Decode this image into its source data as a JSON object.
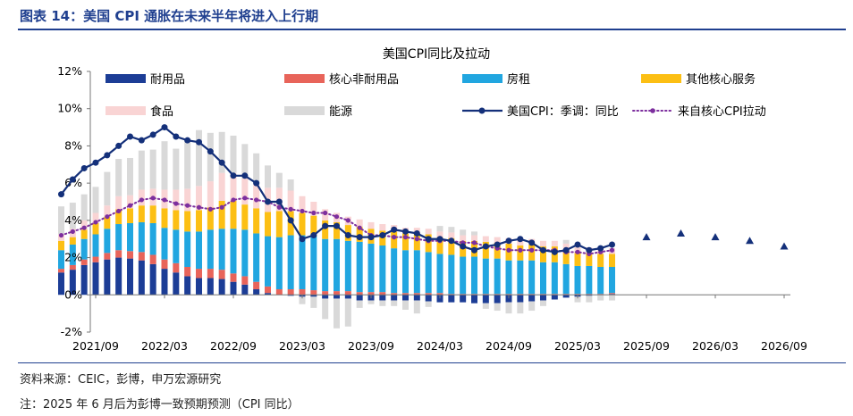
{
  "figure": {
    "title": "图表 14：美国 CPI 通胀在未来半年将进入上行期",
    "source": "资料来源：CEIC，彭博，申万宏源研究",
    "note": "注：2025 年 6 月后为彭博一致预期预测（CPI 同比）"
  },
  "chart_data": {
    "type": "bar",
    "title": "美国CPI同比及拉动",
    "ylim": [
      -2,
      12
    ],
    "yticks": [
      "-2%",
      "0%",
      "2%",
      "4%",
      "6%",
      "8%",
      "10%",
      "12%"
    ],
    "xticks": [
      "2021/09",
      "2022/03",
      "2022/09",
      "2023/03",
      "2023/09",
      "2024/03",
      "2024/09",
      "2025/03",
      "2025/09",
      "2026/03",
      "2026/09"
    ],
    "months": [
      "2021/06",
      "2021/07",
      "2021/08",
      "2021/09",
      "2021/10",
      "2021/11",
      "2021/12",
      "2022/01",
      "2022/02",
      "2022/03",
      "2022/04",
      "2022/05",
      "2022/06",
      "2022/07",
      "2022/08",
      "2022/09",
      "2022/10",
      "2022/11",
      "2022/12",
      "2023/01",
      "2023/02",
      "2023/03",
      "2023/04",
      "2023/05",
      "2023/06",
      "2023/07",
      "2023/08",
      "2023/09",
      "2023/10",
      "2023/11",
      "2023/12",
      "2024/01",
      "2024/02",
      "2024/03",
      "2024/04",
      "2024/05",
      "2024/06",
      "2024/07",
      "2024/08",
      "2024/09",
      "2024/10",
      "2024/11",
      "2024/12",
      "2025/01",
      "2025/02",
      "2025/03",
      "2025/04",
      "2025/05",
      "2025/06"
    ],
    "stack_series": [
      {
        "name": "耐用品",
        "color": "#1c3d96",
        "values": [
          1.2,
          1.35,
          1.6,
          1.75,
          1.9,
          2.0,
          1.95,
          1.85,
          1.65,
          1.4,
          1.2,
          1.0,
          0.9,
          0.9,
          0.85,
          0.7,
          0.55,
          0.3,
          0.1,
          0.0,
          -0.05,
          -0.1,
          -0.1,
          -0.2,
          -0.2,
          -0.2,
          -0.3,
          -0.3,
          -0.3,
          -0.3,
          -0.3,
          -0.3,
          -0.35,
          -0.4,
          -0.4,
          -0.4,
          -0.45,
          -0.45,
          -0.45,
          -0.4,
          -0.4,
          -0.35,
          -0.3,
          -0.25,
          -0.15,
          -0.1,
          -0.05,
          0.0,
          0.05
        ]
      },
      {
        "name": "核心非耐用品",
        "color": "#e8645a",
        "values": [
          0.2,
          0.25,
          0.3,
          0.3,
          0.35,
          0.4,
          0.4,
          0.45,
          0.5,
          0.5,
          0.5,
          0.5,
          0.5,
          0.5,
          0.5,
          0.45,
          0.45,
          0.4,
          0.35,
          0.3,
          0.3,
          0.3,
          0.25,
          0.2,
          0.2,
          0.2,
          0.15,
          0.15,
          0.15,
          0.1,
          0.1,
          0.1,
          0.1,
          0.1,
          0.05,
          0.05,
          0.05,
          0.05,
          0.05,
          0.05,
          0.05,
          0.05,
          0.05,
          0.05,
          0.05,
          0.05,
          0.05,
          0.05,
          0.05
        ]
      },
      {
        "name": "房租",
        "color": "#21a6e0",
        "values": [
          1.0,
          1.1,
          1.1,
          1.2,
          1.3,
          1.4,
          1.5,
          1.6,
          1.7,
          1.7,
          1.8,
          1.9,
          2.0,
          2.1,
          2.2,
          2.4,
          2.5,
          2.6,
          2.7,
          2.8,
          2.9,
          2.9,
          2.9,
          2.8,
          2.8,
          2.7,
          2.7,
          2.6,
          2.5,
          2.4,
          2.3,
          2.3,
          2.2,
          2.1,
          2.1,
          2.0,
          2.0,
          1.9,
          1.9,
          1.8,
          1.8,
          1.8,
          1.7,
          1.7,
          1.6,
          1.5,
          1.5,
          1.45,
          1.4
        ]
      },
      {
        "name": "其他核心服务",
        "color": "#fcbf14",
        "values": [
          0.5,
          0.4,
          0.5,
          0.6,
          0.65,
          0.8,
          0.8,
          0.9,
          0.95,
          1.05,
          1.05,
          1.1,
          1.15,
          1.2,
          1.5,
          1.5,
          1.35,
          1.35,
          1.3,
          1.4,
          1.3,
          1.2,
          1.1,
          1.0,
          0.9,
          0.85,
          0.8,
          0.8,
          0.8,
          0.9,
          0.9,
          0.9,
          0.95,
          0.9,
          0.9,
          0.85,
          0.85,
          0.9,
          0.85,
          0.9,
          0.8,
          0.85,
          0.85,
          0.85,
          0.8,
          0.7,
          0.7,
          0.7,
          0.7
        ]
      },
      {
        "name": "食品",
        "color": "#f9d4d4",
        "values": [
          0.35,
          0.45,
          0.5,
          0.55,
          0.6,
          0.7,
          0.7,
          0.85,
          0.9,
          1.0,
          1.1,
          1.2,
          1.3,
          1.4,
          1.5,
          1.5,
          1.4,
          1.35,
          1.3,
          1.25,
          1.1,
          0.9,
          0.75,
          0.6,
          0.5,
          0.45,
          0.4,
          0.35,
          0.35,
          0.35,
          0.3,
          0.3,
          0.3,
          0.3,
          0.3,
          0.3,
          0.3,
          0.3,
          0.3,
          0.3,
          0.3,
          0.3,
          0.3,
          0.3,
          0.3,
          0.3,
          0.3,
          0.3,
          0.3
        ]
      },
      {
        "name": "能源",
        "color": "#d9d9d9",
        "values": [
          1.5,
          1.4,
          1.4,
          1.4,
          1.8,
          2.0,
          2.0,
          2.1,
          2.1,
          2.6,
          2.2,
          2.7,
          3.0,
          2.6,
          2.2,
          2.0,
          1.85,
          1.6,
          1.2,
          0.8,
          0.6,
          -0.4,
          -0.6,
          -1.1,
          -1.6,
          -1.5,
          -0.4,
          -0.2,
          -0.3,
          -0.3,
          -0.5,
          -0.7,
          -0.3,
          0.3,
          0.3,
          0.3,
          0.2,
          -0.3,
          -0.4,
          -0.6,
          -0.6,
          -0.5,
          -0.3,
          0.0,
          0.2,
          -0.3,
          -0.35,
          -0.3,
          -0.3
        ]
      }
    ],
    "line_series": [
      {
        "name": "美国CPI：季调：同比",
        "color": "#14307a",
        "values": [
          5.4,
          6.2,
          6.8,
          7.1,
          7.5,
          8.0,
          8.5,
          8.3,
          8.6,
          9.0,
          8.5,
          8.3,
          8.2,
          7.7,
          7.1,
          6.4,
          6.4,
          6.0,
          5.0,
          5.0,
          4.0,
          3.0,
          3.2,
          3.7,
          3.7,
          3.2,
          3.1,
          3.1,
          3.2,
          3.5,
          3.4,
          3.3,
          3.0,
          3.0,
          2.9,
          2.6,
          2.4,
          2.6,
          2.7,
          2.9,
          3.0,
          2.8,
          2.4,
          2.3,
          2.4,
          2.7,
          2.4,
          2.5,
          2.7
        ]
      },
      {
        "name": "来自核心CPI拉动",
        "color": "#7d2f9e",
        "values": [
          3.2,
          3.4,
          3.6,
          3.9,
          4.2,
          4.5,
          4.8,
          5.1,
          5.2,
          5.1,
          4.9,
          4.8,
          4.7,
          4.6,
          4.7,
          5.1,
          5.2,
          5.1,
          5.0,
          4.7,
          4.6,
          4.5,
          4.4,
          4.4,
          4.2,
          4.0,
          3.6,
          3.2,
          3.2,
          3.1,
          3.1,
          3.0,
          2.9,
          2.9,
          2.9,
          2.8,
          2.8,
          2.6,
          2.5,
          2.4,
          2.4,
          2.4,
          2.4,
          2.4,
          2.3,
          2.3,
          2.2,
          2.3,
          2.4
        ]
      }
    ],
    "forecast": {
      "name": "美国CPI：季调：同比",
      "color": "#14307a",
      "months": [
        "2025/09",
        "2025/12",
        "2026/03",
        "2026/06",
        "2026/09"
      ],
      "values": [
        3.1,
        3.3,
        3.1,
        2.9,
        2.6
      ]
    },
    "legend": [
      {
        "label": "耐用品",
        "kind": "bar",
        "color": "#1c3d96"
      },
      {
        "label": "核心非耐用品",
        "kind": "bar",
        "color": "#e8645a"
      },
      {
        "label": "房租",
        "kind": "bar",
        "color": "#21a6e0"
      },
      {
        "label": "其他核心服务",
        "kind": "bar",
        "color": "#fcbf14"
      },
      {
        "label": "食品",
        "kind": "bar",
        "color": "#f9d4d4"
      },
      {
        "label": "能源",
        "kind": "bar",
        "color": "#d9d9d9"
      },
      {
        "label": "美国CPI：季调：同比",
        "kind": "line",
        "color": "#14307a"
      },
      {
        "label": "来自核心CPI拉动",
        "kind": "dotted",
        "color": "#7d2f9e"
      }
    ]
  }
}
